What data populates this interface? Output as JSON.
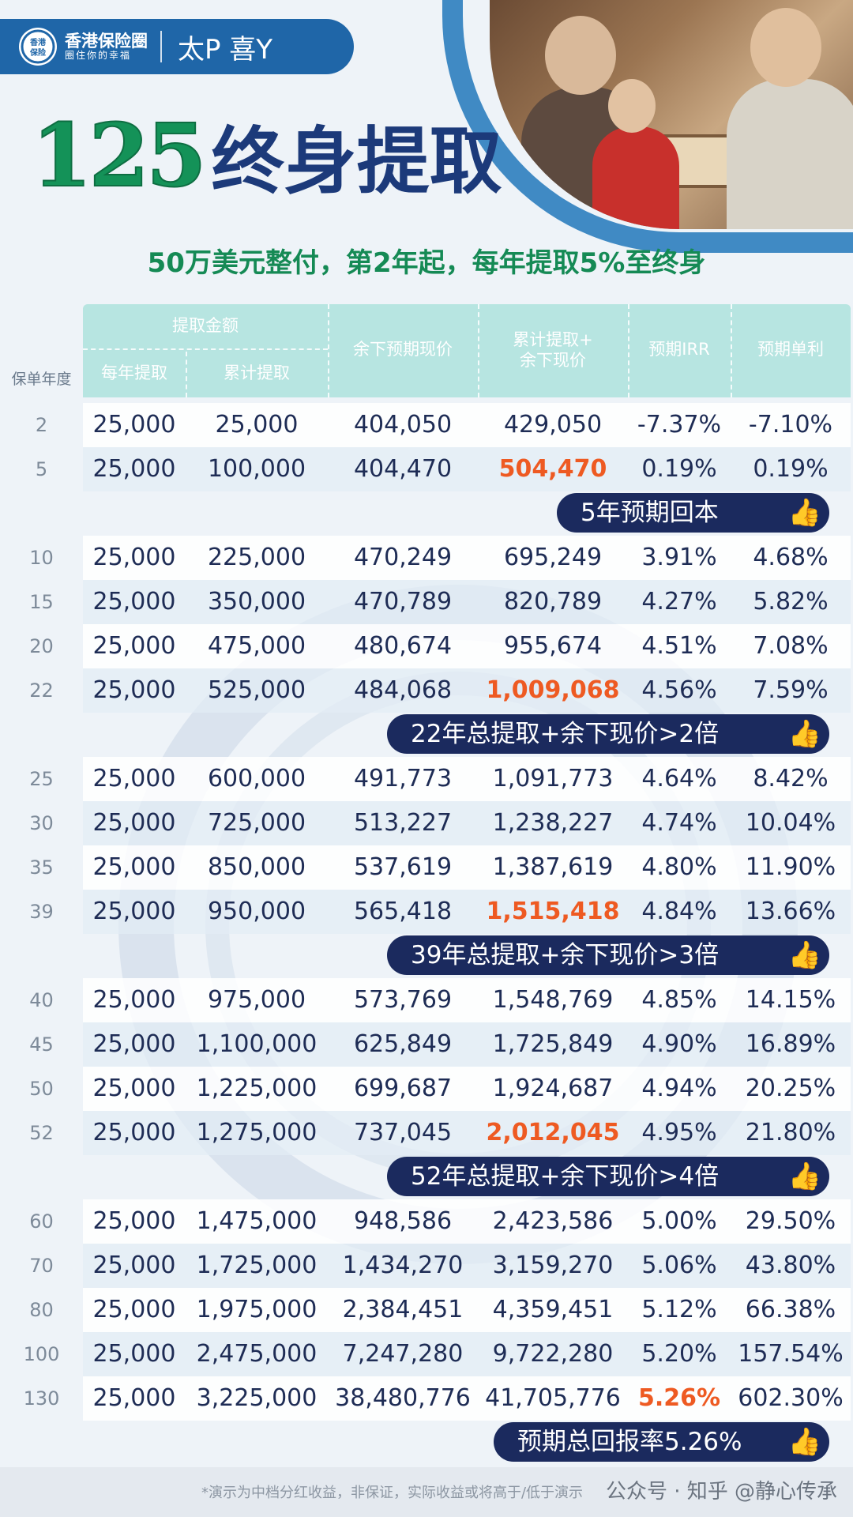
{
  "brand": {
    "logo_text": "香港保险",
    "name": "香港保险圈",
    "slogan": "圈住你的幸福",
    "product": "太P 喜Y"
  },
  "title": {
    "number": "125",
    "text": "终身提取"
  },
  "subtitle": "50万美元整付，第2年起，每年提取5%至终身",
  "table": {
    "headers": {
      "year": "保单年度",
      "withdraw_group": "提取金额",
      "annual": "每年提取",
      "cumulative": "累计提取",
      "remaining": "余下预期现价",
      "total_line1": "累计提取+",
      "total_line2": "余下现价",
      "irr": "预期IRR",
      "simple": "预期单利"
    },
    "rows": [
      {
        "year": "2",
        "annual": "25,000",
        "cumulative": "25,000",
        "remaining": "404,050",
        "total": "429,050",
        "irr": "-7.37%",
        "simple": "-7.10%"
      },
      {
        "year": "5",
        "annual": "25,000",
        "cumulative": "100,000",
        "remaining": "404,470",
        "total": "504,470",
        "irr": "0.19%",
        "simple": "0.19%"
      },
      {
        "year": "10",
        "annual": "25,000",
        "cumulative": "225,000",
        "remaining": "470,249",
        "total": "695,249",
        "irr": "3.91%",
        "simple": "4.68%"
      },
      {
        "year": "15",
        "annual": "25,000",
        "cumulative": "350,000",
        "remaining": "470,789",
        "total": "820,789",
        "irr": "4.27%",
        "simple": "5.82%"
      },
      {
        "year": "20",
        "annual": "25,000",
        "cumulative": "475,000",
        "remaining": "480,674",
        "total": "955,674",
        "irr": "4.51%",
        "simple": "7.08%"
      },
      {
        "year": "22",
        "annual": "25,000",
        "cumulative": "525,000",
        "remaining": "484,068",
        "total": "1,009,068",
        "irr": "4.56%",
        "simple": "7.59%"
      },
      {
        "year": "25",
        "annual": "25,000",
        "cumulative": "600,000",
        "remaining": "491,773",
        "total": "1,091,773",
        "irr": "4.64%",
        "simple": "8.42%"
      },
      {
        "year": "30",
        "annual": "25,000",
        "cumulative": "725,000",
        "remaining": "513,227",
        "total": "1,238,227",
        "irr": "4.74%",
        "simple": "10.04%"
      },
      {
        "year": "35",
        "annual": "25,000",
        "cumulative": "850,000",
        "remaining": "537,619",
        "total": "1,387,619",
        "irr": "4.80%",
        "simple": "11.90%"
      },
      {
        "year": "39",
        "annual": "25,000",
        "cumulative": "950,000",
        "remaining": "565,418",
        "total": "1,515,418",
        "irr": "4.84%",
        "simple": "13.66%"
      },
      {
        "year": "40",
        "annual": "25,000",
        "cumulative": "975,000",
        "remaining": "573,769",
        "total": "1,548,769",
        "irr": "4.85%",
        "simple": "14.15%"
      },
      {
        "year": "45",
        "annual": "25,000",
        "cumulative": "1,100,000",
        "remaining": "625,849",
        "total": "1,725,849",
        "irr": "4.90%",
        "simple": "16.89%"
      },
      {
        "year": "50",
        "annual": "25,000",
        "cumulative": "1,225,000",
        "remaining": "699,687",
        "total": "1,924,687",
        "irr": "4.94%",
        "simple": "20.25%"
      },
      {
        "year": "52",
        "annual": "25,000",
        "cumulative": "1,275,000",
        "remaining": "737,045",
        "total": "2,012,045",
        "irr": "4.95%",
        "simple": "21.80%"
      },
      {
        "year": "60",
        "annual": "25,000",
        "cumulative": "1,475,000",
        "remaining": "948,586",
        "total": "2,423,586",
        "irr": "5.00%",
        "simple": "29.50%"
      },
      {
        "year": "70",
        "annual": "25,000",
        "cumulative": "1,725,000",
        "remaining": "1,434,270",
        "total": "3,159,270",
        "irr": "5.06%",
        "simple": "43.80%"
      },
      {
        "year": "80",
        "annual": "25,000",
        "cumulative": "1,975,000",
        "remaining": "2,384,451",
        "total": "4,359,451",
        "irr": "5.12%",
        "simple": "66.38%"
      },
      {
        "year": "100",
        "annual": "25,000",
        "cumulative": "2,475,000",
        "remaining": "7,247,280",
        "total": "9,722,280",
        "irr": "5.20%",
        "simple": "157.54%"
      },
      {
        "year": "130",
        "annual": "25,000",
        "cumulative": "3,225,000",
        "remaining": "38,480,776",
        "total": "41,705,776",
        "irr": "5.26%",
        "simple": "602.30%"
      }
    ]
  },
  "callouts": [
    {
      "text": "5年预期回本",
      "icon": "thumbs-up-icon"
    },
    {
      "text": "22年总提取+余下现价>2倍",
      "icon": "thumbs-up-icon"
    },
    {
      "text": "39年总提取+余下现价>3倍",
      "icon": "thumbs-up-icon"
    },
    {
      "text": "52年总提取+余下现价>4倍",
      "icon": "thumbs-up-icon"
    },
    {
      "text": "预期总回报率5.26%",
      "icon": "thumbs-up-icon"
    }
  ],
  "footer": {
    "disclaimer": "*演示为中档分红收益，非保证，实际收益或将高于/低于演示",
    "source": "公众号 · 知乎 @静心传承"
  },
  "colors": {
    "brand_blue": "#1f66a8",
    "title_green": "#149258",
    "title_navy": "#1c3a7a",
    "header_teal": "#b7e5e1",
    "highlight_orange": "#ee5a22",
    "callout_navy": "#1b2a5e"
  }
}
